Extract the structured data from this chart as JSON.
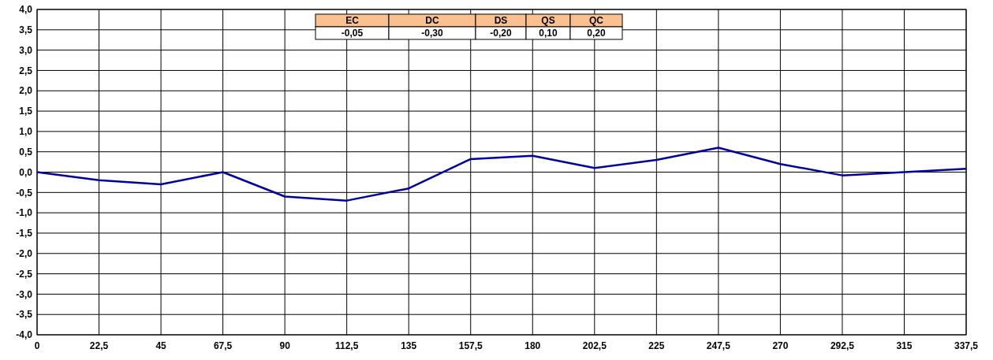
{
  "chart_data": {
    "type": "line",
    "x": [
      0,
      22.5,
      45,
      67.5,
      90,
      112.5,
      135,
      157.5,
      180,
      202.5,
      225,
      247.5,
      270,
      292.5,
      315,
      337.5
    ],
    "series": [
      {
        "color": "#0000a0",
        "values": [
          0,
          -0.2,
          -0.3,
          0,
          -0.6,
          -0.7,
          -0.4,
          0.32,
          0.4,
          0.1,
          0.3,
          0.6,
          0.2,
          -0.08,
          0,
          0.08
        ]
      }
    ],
    "xlim": [
      0,
      337.5
    ],
    "xticks": [
      0,
      {
        "value": 22.5,
        "label": "22,5"
      },
      45,
      {
        "value": 67.5,
        "label": "67,5"
      },
      90,
      {
        "value": 112.5,
        "label": "112,5"
      },
      135,
      {
        "value": 157.5,
        "label": "157,5"
      },
      180,
      {
        "value": 202.5,
        "label": "202,5"
      },
      225,
      {
        "value": 247.5,
        "label": "247,5"
      },
      270,
      {
        "value": 292.5,
        "label": "292,5"
      },
      315,
      {
        "value": 337.5,
        "label": "337,5"
      }
    ],
    "ylim": [
      -4,
      4
    ],
    "yticks": [
      {
        "value": -4,
        "label": "-4,0"
      },
      {
        "value": -3.5,
        "label": "-3,5"
      },
      {
        "value": -3,
        "label": "-3,0"
      },
      {
        "value": -2.5,
        "label": "-2,5"
      },
      {
        "value": -2,
        "label": "-2,0"
      },
      {
        "value": -1.5,
        "label": "-1,5"
      },
      {
        "value": -1,
        "label": "-1,0"
      },
      {
        "value": -0.5,
        "label": "-0,5"
      },
      {
        "value": 0,
        "label": "0,0"
      },
      {
        "value": 0.5,
        "label": "0,5"
      },
      {
        "value": 1,
        "label": "1,0"
      },
      {
        "value": 1.5,
        "label": "1,5"
      },
      {
        "value": 2,
        "label": "2,0"
      },
      {
        "value": 2.5,
        "label": "2,5"
      },
      {
        "value": 3,
        "label": "3,0"
      },
      {
        "value": 3.5,
        "label": "3,5"
      },
      {
        "value": 4,
        "label": "4,0"
      }
    ],
    "grid": true,
    "marker": "none",
    "line_style": "solid",
    "annotations": [
      "EC",
      "DC",
      "DS",
      "QS",
      "QC",
      "-0,05",
      "-0,30",
      "-0,20",
      "0,10",
      "0,20"
    ]
  }
}
